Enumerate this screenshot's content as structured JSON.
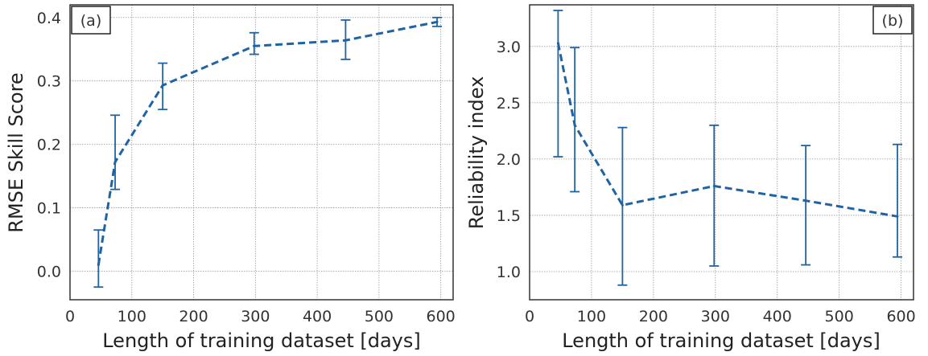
{
  "colors": {
    "series": "#1f63a3",
    "grid": "#9a9a9a",
    "frame": "#333333"
  },
  "chart_data": [
    {
      "type": "line",
      "panel_tag": "(a)",
      "title": "",
      "xlabel": "Length of training dataset [days]",
      "ylabel": "RMSE Skill Score",
      "xlim": [
        0,
        620
      ],
      "ylim": [
        -0.045,
        0.42
      ],
      "xticks": [
        0,
        100,
        200,
        300,
        400,
        500,
        600
      ],
      "yticks": [
        0.0,
        0.1,
        0.2,
        0.3,
        0.4
      ],
      "xtick_labels": [
        "0",
        "100",
        "200",
        "300",
        "400",
        "500",
        "600"
      ],
      "ytick_labels": [
        "0.0",
        "0.1",
        "0.2",
        "0.3",
        "0.4"
      ],
      "grid": true,
      "line_style": "dashed",
      "series": [
        {
          "x": [
            46,
            73,
            150,
            298,
            446,
            594
          ],
          "y": [
            0.01,
            0.172,
            0.293,
            0.355,
            0.364,
            0.393
          ],
          "err_low": [
            -0.025,
            0.129,
            0.255,
            0.342,
            0.334,
            0.386
          ],
          "err_high": [
            0.065,
            0.246,
            0.328,
            0.376,
            0.396,
            0.4
          ]
        }
      ]
    },
    {
      "type": "line",
      "panel_tag": "(b)",
      "title": "",
      "xlabel": "Length of training dataset [days]",
      "ylabel": "Reliability index",
      "xlim": [
        0,
        620
      ],
      "ylim": [
        0.75,
        3.37
      ],
      "xticks": [
        0,
        100,
        200,
        300,
        400,
        500,
        600
      ],
      "yticks": [
        1.0,
        1.5,
        2.0,
        2.5,
        3.0
      ],
      "xtick_labels": [
        "0",
        "100",
        "200",
        "300",
        "400",
        "500",
        "600"
      ],
      "ytick_labels": [
        "1.0",
        "1.5",
        "2.0",
        "2.5",
        "3.0"
      ],
      "grid": true,
      "line_style": "dashed",
      "series": [
        {
          "x": [
            46,
            73,
            150,
            298,
            446,
            594
          ],
          "y": [
            3.03,
            2.3,
            1.59,
            1.76,
            1.63,
            1.49
          ],
          "err_low": [
            2.02,
            1.71,
            0.88,
            1.05,
            1.06,
            1.13
          ],
          "err_high": [
            3.32,
            2.99,
            2.28,
            2.3,
            2.12,
            2.13
          ]
        }
      ]
    }
  ]
}
